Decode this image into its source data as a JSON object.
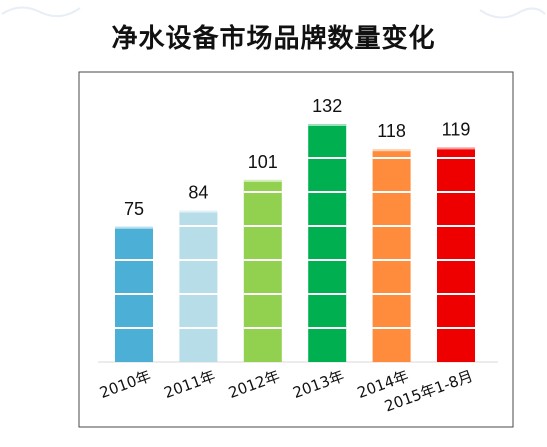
{
  "chart_data": {
    "type": "bar",
    "title": "净水设备市场品牌数量变化",
    "categories": [
      "2010年",
      "2011年",
      "2012年",
      "2013年",
      "2014年",
      "2015年1-8月"
    ],
    "values": [
      75,
      84,
      101,
      132,
      118,
      119
    ],
    "data_labels": [
      "75",
      "84",
      "101",
      "132",
      "118",
      "119"
    ],
    "bar_colors": [
      "#4bafd6",
      "#b7dde8",
      "#92d050",
      "#00b050",
      "#ff8c3c",
      "#ee0000"
    ],
    "ylim": [
      0,
      145
    ],
    "grid": false,
    "legend": "none",
    "xlabel": "",
    "ylabel": ""
  }
}
